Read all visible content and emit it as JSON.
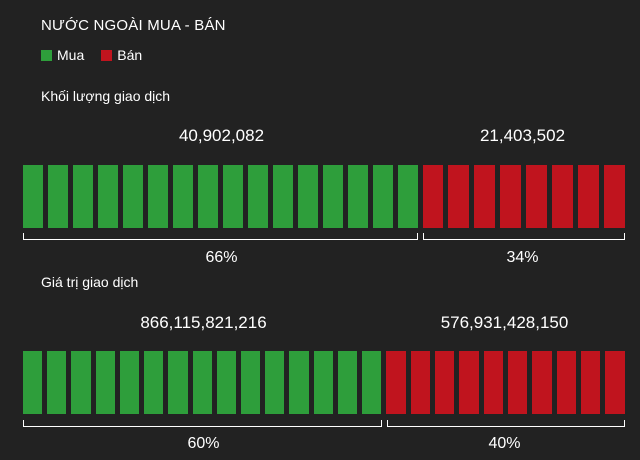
{
  "title": "NƯỚC NGOÀI MUA - BÁN",
  "legend": {
    "buy_label": "Mua",
    "sell_label": "Bán",
    "buy_color": "#2e9e3b",
    "sell_color": "#c0141e"
  },
  "sections": [
    {
      "label": "Khối lượng giao dịch",
      "buy_value": "40,902,082",
      "sell_value": "21,403,502",
      "buy_percent": "66%",
      "sell_percent": "34%",
      "buy_share": 0.66,
      "buy_segments": 16,
      "sell_segments": 8
    },
    {
      "label": "Giá trị giao dịch",
      "buy_value": "866,115,821,216",
      "sell_value": "576,931,428,150",
      "buy_percent": "60%",
      "sell_percent": "40%",
      "buy_share": 0.6,
      "buy_segments": 15,
      "sell_segments": 10
    }
  ]
}
